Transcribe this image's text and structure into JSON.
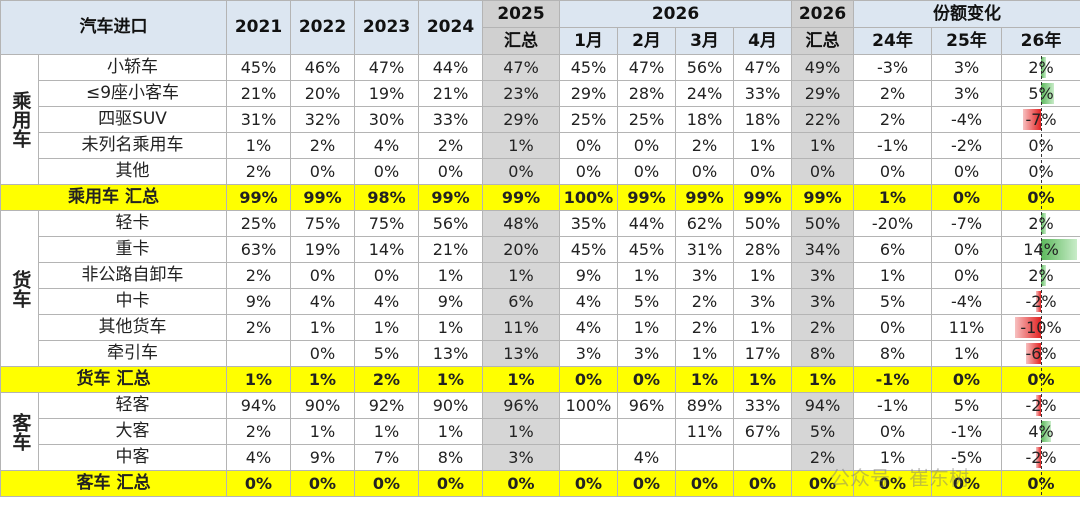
{
  "header": {
    "corner": "汽车进口",
    "years": [
      "2021",
      "2022",
      "2023",
      "2024"
    ],
    "y2025": [
      "2025",
      "汇总"
    ],
    "y2026": "2026",
    "months": [
      "1月",
      "2月",
      "3月",
      "4月"
    ],
    "y2026sum": [
      "2026",
      "汇总"
    ],
    "share": "份额变化",
    "shareCols": [
      "24年",
      "25年",
      "26年"
    ]
  },
  "watermark": "公众号 · 崔东树",
  "sections": [
    {
      "category": "乘用车",
      "rows": [
        {
          "name": "小轿车",
          "values": [
            "45%",
            "46%",
            "47%",
            "44%",
            "47%",
            "45%",
            "47%",
            "56%",
            "47%",
            "49%",
            "-3%",
            "3%"
          ],
          "change26": 2
        },
        {
          "name": "≤9座小客车",
          "values": [
            "21%",
            "20%",
            "19%",
            "21%",
            "23%",
            "29%",
            "28%",
            "24%",
            "33%",
            "29%",
            "2%",
            "3%"
          ],
          "change26": 5
        },
        {
          "name": "四驱SUV",
          "values": [
            "31%",
            "32%",
            "30%",
            "33%",
            "29%",
            "25%",
            "25%",
            "18%",
            "18%",
            "22%",
            "2%",
            "-4%"
          ],
          "change26": -7
        },
        {
          "name": "未列名乘用车",
          "values": [
            "1%",
            "2%",
            "4%",
            "2%",
            "1%",
            "0%",
            "0%",
            "2%",
            "1%",
            "1%",
            "-1%",
            "-2%"
          ],
          "change26": 0
        },
        {
          "name": "其他",
          "values": [
            "2%",
            "0%",
            "0%",
            "0%",
            "0%",
            "0%",
            "0%",
            "0%",
            "0%",
            "0%",
            "0%",
            "0%"
          ],
          "change26": 0
        }
      ],
      "total": {
        "name": "乘用车 汇总",
        "values": [
          "99%",
          "99%",
          "98%",
          "99%",
          "99%",
          "100%",
          "99%",
          "99%",
          "99%",
          "99%",
          "1%",
          "0%"
        ],
        "change26": 0
      }
    },
    {
      "category": "货车",
      "rows": [
        {
          "name": "轻卡",
          "values": [
            "25%",
            "75%",
            "75%",
            "56%",
            "48%",
            "35%",
            "44%",
            "62%",
            "50%",
            "50%",
            "-20%",
            "-7%"
          ],
          "change26": 2
        },
        {
          "name": "重卡",
          "values": [
            "63%",
            "19%",
            "14%",
            "21%",
            "20%",
            "45%",
            "45%",
            "31%",
            "28%",
            "34%",
            "6%",
            "0%"
          ],
          "change26": 14
        },
        {
          "name": "非公路自卸车",
          "values": [
            "2%",
            "0%",
            "0%",
            "1%",
            "1%",
            "9%",
            "1%",
            "3%",
            "1%",
            "3%",
            "1%",
            "0%"
          ],
          "change26": 2
        },
        {
          "name": "中卡",
          "values": [
            "9%",
            "4%",
            "4%",
            "9%",
            "6%",
            "4%",
            "5%",
            "2%",
            "3%",
            "3%",
            "5%",
            "-4%"
          ],
          "change26": -2
        },
        {
          "name": "其他货车",
          "values": [
            "2%",
            "1%",
            "1%",
            "1%",
            "11%",
            "4%",
            "1%",
            "2%",
            "1%",
            "2%",
            "0%",
            "11%"
          ],
          "change26": -10
        },
        {
          "name": "牵引车",
          "values": [
            "",
            "0%",
            "5%",
            "13%",
            "13%",
            "3%",
            "3%",
            "1%",
            "17%",
            "8%",
            "8%",
            "1%"
          ],
          "change26": -6
        }
      ],
      "total": {
        "name": "货车 汇总",
        "values": [
          "1%",
          "1%",
          "2%",
          "1%",
          "1%",
          "0%",
          "0%",
          "1%",
          "1%",
          "1%",
          "-1%",
          "0%"
        ],
        "change26": 0
      }
    },
    {
      "category": "客车",
      "rows": [
        {
          "name": "轻客",
          "values": [
            "94%",
            "90%",
            "92%",
            "90%",
            "96%",
            "100%",
            "96%",
            "89%",
            "33%",
            "94%",
            "-1%",
            "5%"
          ],
          "change26": -2
        },
        {
          "name": "大客",
          "values": [
            "2%",
            "1%",
            "1%",
            "1%",
            "1%",
            "",
            "",
            "11%",
            "67%",
            "5%",
            "0%",
            "-1%"
          ],
          "change26": 4
        },
        {
          "name": "中客",
          "values": [
            "4%",
            "9%",
            "7%",
            "8%",
            "3%",
            "",
            "4%",
            "",
            "",
            "2%",
            "1%",
            "-5%"
          ],
          "change26": -2
        }
      ],
      "total": {
        "name": "客车 汇总",
        "values": [
          "0%",
          "0%",
          "0%",
          "0%",
          "0%",
          "0%",
          "0%",
          "0%",
          "0%",
          "0%",
          "0%",
          "0%"
        ],
        "change26": 0
      }
    }
  ]
}
